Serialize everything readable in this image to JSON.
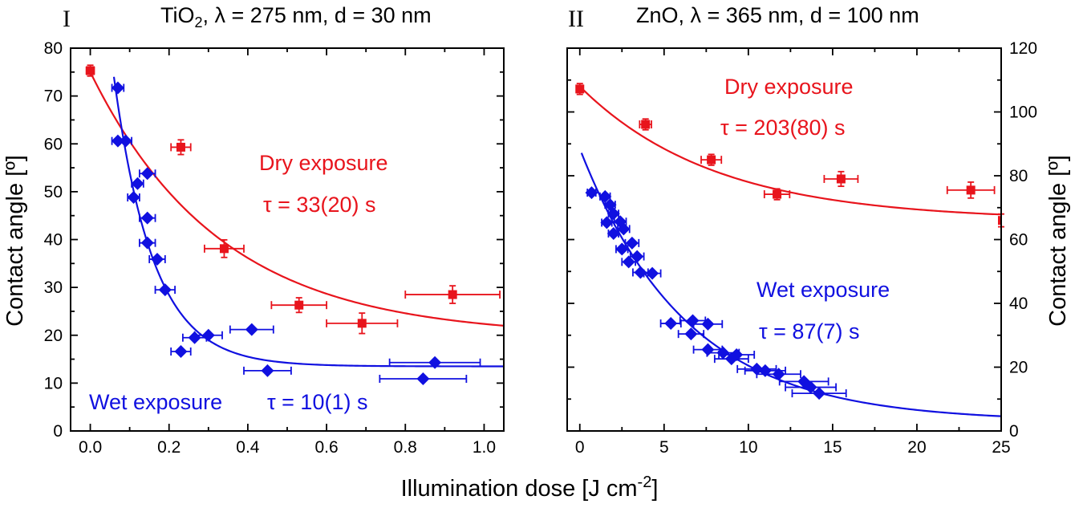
{
  "chart_data": [
    {
      "type": "scatter",
      "panel": "I",
      "title_prefix": "TiO",
      "title_sub": "2",
      "title_suffix": ", λ = 275 nm, d = 30 nm",
      "xlabel": "Illumination dose [J cm-2]",
      "ylabel": "Contact angle [º]",
      "xlim": [
        -0.05,
        1.05
      ],
      "ylim": [
        0,
        80
      ],
      "xticks": [
        0.0,
        0.2,
        0.4,
        0.6,
        0.8,
        1.0
      ],
      "xticklabels": [
        "0.0",
        "0.2",
        "0.4",
        "0.6",
        "0.8",
        "1.0"
      ],
      "yticks": [
        0,
        10,
        20,
        30,
        40,
        50,
        60,
        70,
        80
      ],
      "yticklabels": [
        "0",
        "10",
        "20",
        "30",
        "40",
        "50",
        "60",
        "70",
        "80"
      ],
      "y_axis_side": "left",
      "series": [
        {
          "name": "Dry exposure",
          "tau_label": "τ = 33(20) s",
          "color": "#e8141c",
          "marker": "square",
          "points": [
            {
              "x": 0.0,
              "y": 75.3,
              "xerr": 0.01,
              "yerr": 0.8
            },
            {
              "x": 0.23,
              "y": 59.3,
              "xerr": 0.025,
              "yerr": 1.2
            },
            {
              "x": 0.34,
              "y": 38.1,
              "xerr": 0.05,
              "yerr": 1.5
            },
            {
              "x": 0.53,
              "y": 26.3,
              "xerr": 0.07,
              "yerr": 1.2
            },
            {
              "x": 0.69,
              "y": 22.5,
              "xerr": 0.09,
              "yerr": 1.8
            },
            {
              "x": 0.92,
              "y": 28.5,
              "xerr": 0.12,
              "yerr": 1.5
            }
          ],
          "fit": {
            "model": "exponential",
            "y0": 19.7,
            "A": 55.3,
            "scale": 0.33,
            "x_range": [
              0.0,
              1.05
            ]
          }
        },
        {
          "name": "Wet exposure",
          "tau_label": "τ = 10(1) s",
          "color": "#1010e0",
          "marker": "diamond",
          "points": [
            {
              "x": 0.07,
              "y": 71.7,
              "xerr": 0.015
            },
            {
              "x": 0.07,
              "y": 60.6,
              "xerr": 0.015
            },
            {
              "x": 0.09,
              "y": 60.6,
              "xerr": 0.015
            },
            {
              "x": 0.145,
              "y": 53.8,
              "xerr": 0.02
            },
            {
              "x": 0.12,
              "y": 51.7,
              "xerr": 0.015
            },
            {
              "x": 0.11,
              "y": 48.8,
              "xerr": 0.015
            },
            {
              "x": 0.145,
              "y": 44.5,
              "xerr": 0.02
            },
            {
              "x": 0.145,
              "y": 39.3,
              "xerr": 0.02
            },
            {
              "x": 0.17,
              "y": 35.9,
              "xerr": 0.02
            },
            {
              "x": 0.19,
              "y": 29.5,
              "xerr": 0.025
            },
            {
              "x": 0.3,
              "y": 20.0,
              "xerr": 0.035
            },
            {
              "x": 0.265,
              "y": 19.5,
              "xerr": 0.03
            },
            {
              "x": 0.41,
              "y": 21.2,
              "xerr": 0.055
            },
            {
              "x": 0.23,
              "y": 16.6,
              "xerr": 0.025
            },
            {
              "x": 0.45,
              "y": 12.6,
              "xerr": 0.06
            },
            {
              "x": 0.875,
              "y": 14.3,
              "xerr": 0.115
            },
            {
              "x": 0.845,
              "y": 10.9,
              "xerr": 0.11
            }
          ],
          "fit": {
            "model": "exponential",
            "y0": 13.5,
            "A": 60.5,
            "scale": 0.1,
            "x0": 0.06,
            "x_range": [
              0.06,
              1.05
            ]
          }
        }
      ]
    },
    {
      "type": "scatter",
      "panel": "II",
      "title_prefix": "ZnO, λ = 365 nm, d = 100 nm",
      "xlabel": "Illumination dose [J cm-2]",
      "ylabel": "Contact angle [º]",
      "xlim": [
        -0.75,
        25
      ],
      "ylim": [
        0,
        120
      ],
      "xticks": [
        0,
        5,
        10,
        15,
        20,
        25
      ],
      "xticklabels": [
        "0",
        "5",
        "10",
        "15",
        "20",
        "25"
      ],
      "yticks": [
        0,
        20,
        40,
        60,
        80,
        100,
        120
      ],
      "yticklabels": [
        "0",
        "20",
        "40",
        "60",
        "80",
        "100",
        "120"
      ],
      "y_axis_side": "right",
      "series": [
        {
          "name": "Dry exposure",
          "tau_label": "τ = 203(80) s",
          "color": "#e8141c",
          "marker": "square",
          "points": [
            {
              "x": 0.0,
              "y": 107.2,
              "xerr": 0.1,
              "yerr": 1.2
            },
            {
              "x": 3.9,
              "y": 96.1,
              "xerr": 0.35,
              "yerr": 1.2
            },
            {
              "x": 7.8,
              "y": 85.0,
              "xerr": 0.6,
              "yerr": 1.2
            },
            {
              "x": 11.7,
              "y": 74.2,
              "xerr": 0.75,
              "yerr": 1.2
            },
            {
              "x": 15.5,
              "y": 79.0,
              "xerr": 1.0,
              "yerr": 1.8
            },
            {
              "x": 23.2,
              "y": 75.5,
              "xerr": 1.4,
              "yerr": 2.0
            },
            {
              "x": 25.0,
              "y": 66.0,
              "xerr": 0.0,
              "yerr": 1.5
            }
          ],
          "fit": {
            "model": "exponential",
            "y0": 66.0,
            "A": 42.0,
            "scale": 8.0,
            "x_range": [
              0.0,
              25.0
            ]
          }
        },
        {
          "name": "Wet exposure",
          "tau_label": "τ = 87(7) s",
          "color": "#1010e0",
          "marker": "diamond",
          "points": [
            {
              "x": 0.7,
              "y": 74.7,
              "xerr": 0.25
            },
            {
              "x": 1.5,
              "y": 73.5,
              "xerr": 0.3
            },
            {
              "x": 1.8,
              "y": 70.9,
              "xerr": 0.3
            },
            {
              "x": 2.0,
              "y": 68.1,
              "xerr": 0.3
            },
            {
              "x": 1.6,
              "y": 65.3,
              "xerr": 0.3
            },
            {
              "x": 2.4,
              "y": 65.6,
              "xerr": 0.35
            },
            {
              "x": 2.6,
              "y": 63.3,
              "xerr": 0.35
            },
            {
              "x": 2.0,
              "y": 61.9,
              "xerr": 0.3
            },
            {
              "x": 3.1,
              "y": 58.9,
              "xerr": 0.4
            },
            {
              "x": 2.5,
              "y": 57.0,
              "xerr": 0.35
            },
            {
              "x": 3.4,
              "y": 54.7,
              "xerr": 0.4
            },
            {
              "x": 2.9,
              "y": 53.0,
              "xerr": 0.4
            },
            {
              "x": 3.6,
              "y": 49.7,
              "xerr": 0.45
            },
            {
              "x": 4.3,
              "y": 49.4,
              "xerr": 0.5
            },
            {
              "x": 5.4,
              "y": 33.7,
              "xerr": 0.6
            },
            {
              "x": 6.7,
              "y": 34.6,
              "xerr": 0.75
            },
            {
              "x": 7.6,
              "y": 33.5,
              "xerr": 0.85
            },
            {
              "x": 6.6,
              "y": 30.4,
              "xerr": 0.75
            },
            {
              "x": 7.6,
              "y": 25.5,
              "xerr": 0.85
            },
            {
              "x": 8.5,
              "y": 24.5,
              "xerr": 0.95
            },
            {
              "x": 9.3,
              "y": 23.9,
              "xerr": 1.05
            },
            {
              "x": 9.0,
              "y": 22.6,
              "xerr": 1.0
            },
            {
              "x": 10.5,
              "y": 19.4,
              "xerr": 1.15
            },
            {
              "x": 11.0,
              "y": 18.9,
              "xerr": 1.2
            },
            {
              "x": 11.8,
              "y": 17.8,
              "xerr": 1.3
            },
            {
              "x": 13.3,
              "y": 15.5,
              "xerr": 1.45
            },
            {
              "x": 13.7,
              "y": 13.7,
              "xerr": 1.5
            },
            {
              "x": 14.2,
              "y": 11.8,
              "xerr": 1.6
            }
          ],
          "fit": {
            "model": "exponential",
            "y0": 3.0,
            "A": 85.5,
            "scale": 6.3,
            "x_range": [
              0.1,
              25.0
            ]
          }
        }
      ]
    }
  ],
  "shared": {
    "xlabel_text": "Illumination dose [J cm",
    "xlabel_sup": "-2",
    "xlabel_end": "]",
    "ylabel": "Contact angle [º]"
  }
}
